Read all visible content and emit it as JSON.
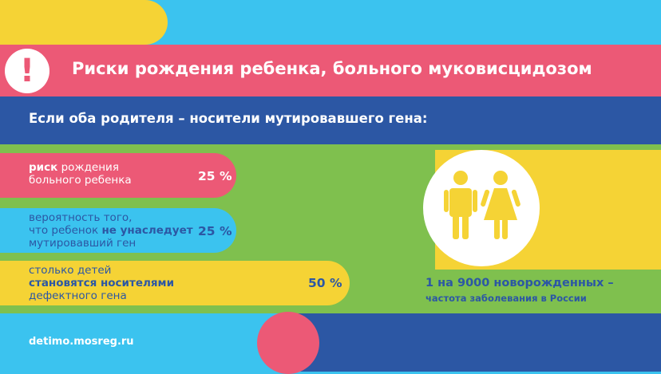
{
  "header": {
    "alert_icon": "exclamation-icon",
    "alert_glyph": "!",
    "title": "Риски рождения ребенка, больного муковисцидозом"
  },
  "subtitle": "Если оба родителя – носители мутировавшего гена:",
  "risks": [
    {
      "line1_bold": "риск",
      "line1_rest": " рождения",
      "line2": "больного ребенка",
      "percent": "25 %"
    },
    {
      "line1": "вероятность того,",
      "line2_pre": "что ребенок ",
      "line2_bold": "не унаследует",
      "line3": "мутировавший ген",
      "percent": "25 %"
    },
    {
      "line1": "столько детей",
      "line2_bold": "становятся носителями",
      "line3": "дефектного гена",
      "percent": "50 %"
    }
  ],
  "stat": {
    "main": "1 на 9000 новорожденных –",
    "sub": "частота заболевания в России",
    "icon": "male-female-icon"
  },
  "footer": {
    "url": "detimo.mosreg.ru"
  },
  "colors": {
    "pink": "#ec5976",
    "yellow": "#f5d335",
    "cyan": "#3bc3ef",
    "navy": "#2c57a4",
    "green": "#7fc04e"
  }
}
